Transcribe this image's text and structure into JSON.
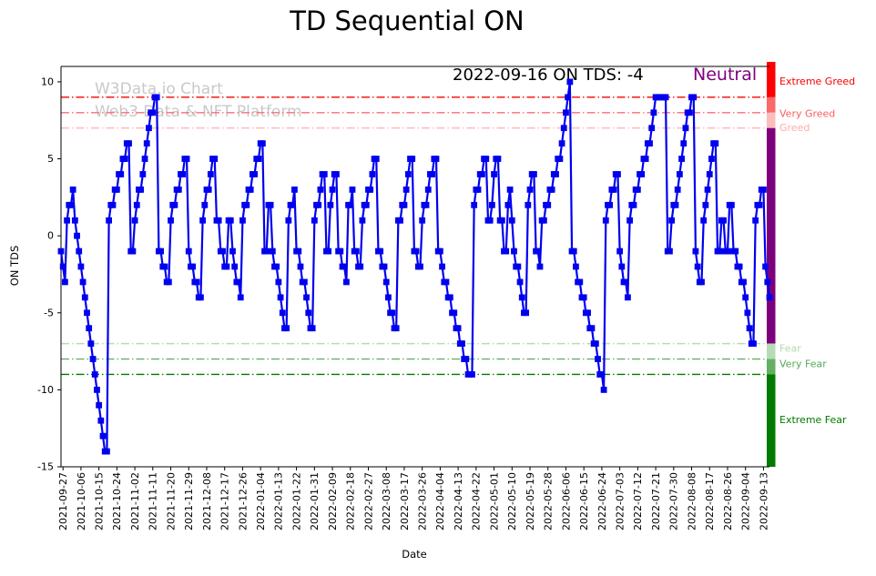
{
  "chart_data": {
    "type": "line",
    "title": "TD Sequential ON",
    "xlabel": "Date",
    "ylabel": "ON TDS",
    "ylim": [
      -15,
      11
    ],
    "grid": false,
    "start_date": "2021-09-26",
    "end_date": "2022-09-16",
    "frequency": "daily",
    "y_ticks": [
      10,
      5,
      0,
      -5,
      -10,
      -15
    ],
    "x_tick_labels": [
      "2021-09-27",
      "2021-10-06",
      "2021-10-15",
      "2021-10-24",
      "2021-11-02",
      "2021-11-11",
      "2021-11-20",
      "2021-11-29",
      "2021-12-08",
      "2021-12-17",
      "2021-12-26",
      "2022-01-04",
      "2022-01-13",
      "2022-01-22",
      "2022-01-31",
      "2022-02-09",
      "2022-02-18",
      "2022-02-27",
      "2022-03-08",
      "2022-03-17",
      "2022-03-26",
      "2022-04-04",
      "2022-04-13",
      "2022-04-22",
      "2022-05-01",
      "2022-05-10",
      "2022-05-19",
      "2022-05-28",
      "2022-06-06",
      "2022-06-15",
      "2022-06-24",
      "2022-07-03",
      "2022-07-12",
      "2022-07-21",
      "2022-07-30",
      "2022-08-08",
      "2022-08-17",
      "2022-08-26",
      "2022-09-04",
      "2022-09-13"
    ],
    "x_tick_start_index": 1,
    "x_tick_step": 9,
    "series": [
      {
        "name": "ON TDS",
        "color": "#0000f0",
        "marker": "square",
        "values_note": "daily estimated values read from plot, 2021-09-26 through 2022-09-16",
        "values": [
          -1,
          -2,
          -3,
          1,
          2,
          2,
          3,
          1,
          0,
          -1,
          -2,
          -3,
          -4,
          -5,
          -6,
          -7,
          -8,
          -9,
          -10,
          -11,
          -12,
          -13,
          -14,
          -14,
          1,
          2,
          2,
          3,
          3,
          4,
          4,
          5,
          5,
          6,
          6,
          -1,
          -1,
          1,
          2,
          3,
          3,
          4,
          5,
          6,
          7,
          8,
          8,
          9,
          9,
          -1,
          -1,
          -2,
          -2,
          -3,
          -3,
          1,
          2,
          2,
          3,
          3,
          4,
          4,
          5,
          5,
          -1,
          -2,
          -2,
          -3,
          -3,
          -4,
          -4,
          1,
          2,
          3,
          3,
          4,
          5,
          5,
          1,
          1,
          -1,
          -1,
          -2,
          -2,
          1,
          1,
          -1,
          -2,
          -3,
          -3,
          -4,
          1,
          2,
          2,
          3,
          3,
          4,
          4,
          5,
          5,
          6,
          6,
          -1,
          -1,
          2,
          2,
          -1,
          -2,
          -2,
          -3,
          -4,
          -5,
          -6,
          -6,
          1,
          2,
          2,
          3,
          -1,
          -1,
          -2,
          -3,
          -3,
          -4,
          -5,
          -6,
          -6,
          1,
          2,
          2,
          3,
          4,
          4,
          -1,
          -1,
          2,
          3,
          4,
          4,
          -1,
          -1,
          -2,
          -2,
          -3,
          2,
          2,
          3,
          -1,
          -1,
          -2,
          -2,
          1,
          2,
          2,
          3,
          3,
          4,
          5,
          5,
          -1,
          -1,
          -2,
          -2,
          -3,
          -4,
          -5,
          -5,
          -6,
          -6,
          1,
          1,
          2,
          2,
          3,
          4,
          5,
          5,
          -1,
          -1,
          -2,
          -2,
          1,
          2,
          2,
          3,
          4,
          4,
          5,
          5,
          -1,
          -1,
          -2,
          -3,
          -3,
          -4,
          -4,
          -5,
          -5,
          -6,
          -6,
          -7,
          -7,
          -8,
          -8,
          -9,
          -9,
          -9,
          2,
          3,
          3,
          4,
          4,
          5,
          5,
          1,
          1,
          2,
          4,
          5,
          5,
          1,
          1,
          -1,
          -1,
          2,
          3,
          1,
          -1,
          -2,
          -2,
          -3,
          -4,
          -5,
          -5,
          2,
          3,
          4,
          4,
          -1,
          -1,
          -2,
          1,
          1,
          2,
          2,
          3,
          3,
          4,
          4,
          5,
          5,
          6,
          7,
          8,
          9,
          10,
          -1,
          -1,
          -2,
          -3,
          -3,
          -4,
          -4,
          -5,
          -5,
          -6,
          -6,
          -7,
          -7,
          -8,
          -9,
          -9,
          -10,
          1,
          2,
          2,
          3,
          3,
          4,
          4,
          -1,
          -2,
          -3,
          -3,
          -4,
          1,
          2,
          2,
          3,
          3,
          4,
          4,
          5,
          5,
          6,
          6,
          7,
          8,
          9,
          9,
          9,
          9,
          9,
          9,
          -1,
          -1,
          1,
          2,
          2,
          3,
          4,
          5,
          6,
          7,
          8,
          8,
          9,
          9,
          -1,
          -2,
          -3,
          -3,
          1,
          2,
          3,
          4,
          5,
          6,
          6,
          -1,
          -1,
          1,
          1,
          -1,
          -1,
          2,
          2,
          -1,
          -1,
          -2,
          -2,
          -3,
          -3,
          -4,
          -5,
          -6,
          -7,
          -7,
          1,
          2,
          2,
          3,
          3,
          -2,
          -3,
          -4
        ]
      }
    ],
    "thresholds": [
      {
        "value": 9,
        "label": "Extreme Greed",
        "line_color": "#fd0000",
        "label_color": "#f80000"
      },
      {
        "value": 8,
        "label": "Very Greed",
        "line_color": "#fc6e6e",
        "label_color": "#fb5d5d"
      },
      {
        "value": 7,
        "label": "Greed",
        "line_color": "#fdb9b9",
        "label_color": "#ffabab"
      },
      {
        "value": -7,
        "label": "Fear",
        "line_color": "#b5dcb5",
        "label_color": "#b2d8b2"
      },
      {
        "value": -8,
        "label": "Very Fear",
        "line_color": "#63b063",
        "label_color": "#56a856"
      },
      {
        "value": -9,
        "label": "Extreme Fear",
        "line_color": "#007a00",
        "label_color": "#007a00"
      }
    ],
    "sentiment_bar": [
      {
        "from": 11.3,
        "to": 9,
        "color": "#fe0000"
      },
      {
        "from": 9,
        "to": 8,
        "color": "#f96a6a"
      },
      {
        "from": 8,
        "to": 7,
        "color": "#fcbcbc"
      },
      {
        "from": 7,
        "to": -7,
        "color": "#7d017d"
      },
      {
        "from": -7,
        "to": -8,
        "color": "#b5dcb5"
      },
      {
        "from": -8,
        "to": -9,
        "color": "#63b063"
      },
      {
        "from": -9,
        "to": -15,
        "color": "#007a00"
      }
    ],
    "annotation": {
      "text": "2022-09-16 ON TDS: -4",
      "sentiment": "Neutral",
      "sentiment_color": "#800080"
    },
    "watermark": {
      "line1": "W3Data.io Chart",
      "line2": "Web3 Data & NFT Platform"
    }
  }
}
